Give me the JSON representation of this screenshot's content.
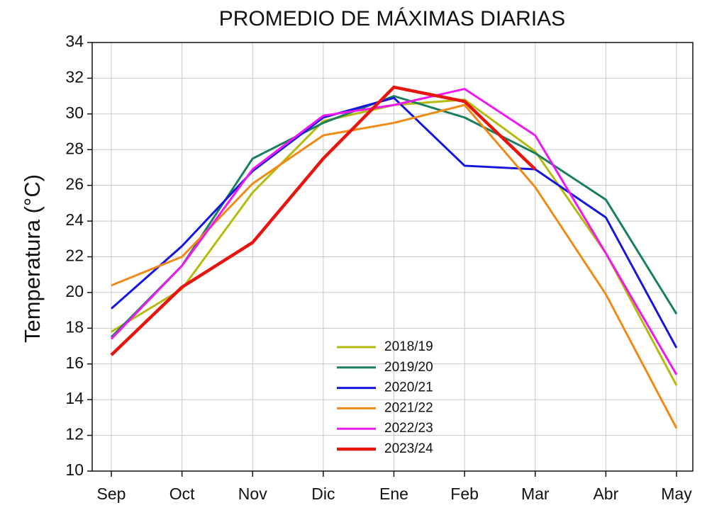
{
  "chart_data": {
    "type": "line",
    "title": "PROMEDIO DE MÁXIMAS DIARIAS",
    "y_label": "Temperatura (°C)",
    "categories": [
      "Sep",
      "Oct",
      "Nov",
      "Dic",
      "Ene",
      "Feb",
      "Mar",
      "Abr",
      "May"
    ],
    "ylim": [
      10,
      34
    ],
    "yticks": [
      10,
      12,
      14,
      16,
      18,
      20,
      22,
      24,
      26,
      28,
      30,
      32,
      34
    ],
    "grid": true,
    "legend": "lower center",
    "series": [
      {
        "name": "2018/19",
        "color": "#b4bb0e",
        "line_width": 3,
        "values": [
          17.8,
          20.2,
          25.6,
          29.6,
          30.5,
          30.8,
          27.9,
          22.2,
          14.8
        ]
      },
      {
        "name": "2019/20",
        "color": "#1a7f5f",
        "line_width": 3,
        "values": [
          17.5,
          21.5,
          27.5,
          29.5,
          31.0,
          29.8,
          27.8,
          25.2,
          18.8
        ]
      },
      {
        "name": "2020/21",
        "color": "#1515e0",
        "line_width": 3,
        "values": [
          19.1,
          22.6,
          26.8,
          29.8,
          30.9,
          27.1,
          26.9,
          24.2,
          16.9
        ]
      },
      {
        "name": "2021/22",
        "color": "#f08a14",
        "line_width": 3,
        "values": [
          20.4,
          22.0,
          26.1,
          28.8,
          29.5,
          30.5,
          25.9,
          19.9,
          12.4
        ]
      },
      {
        "name": "2022/23",
        "color": "#f018f0",
        "line_width": 3,
        "values": [
          17.4,
          21.5,
          26.9,
          29.9,
          30.5,
          31.4,
          28.8,
          22.2,
          15.4
        ]
      },
      {
        "name": "2023/24",
        "color": "#e8140e",
        "line_width": 4.5,
        "values": [
          16.5,
          20.3,
          22.8,
          27.5,
          31.5,
          30.7,
          26.9,
          null,
          null
        ]
      }
    ]
  }
}
